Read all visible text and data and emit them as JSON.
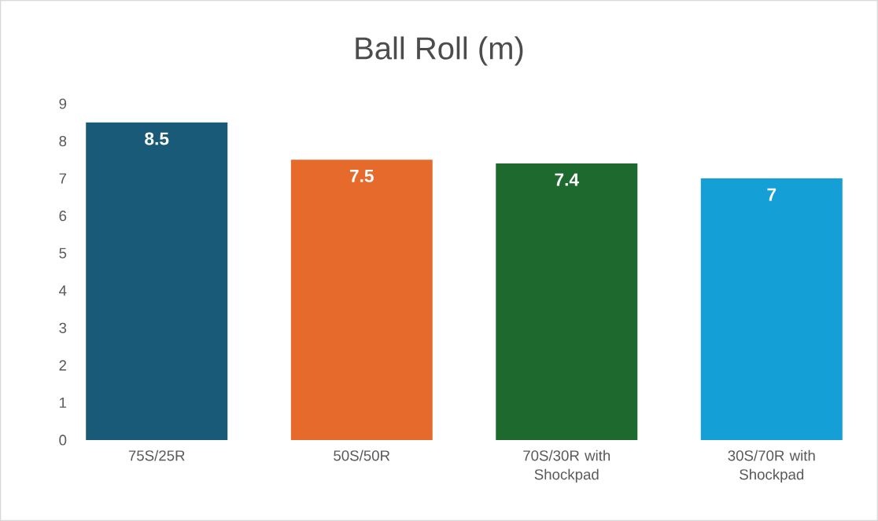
{
  "chart_data": {
    "type": "bar",
    "title": "Ball Roll (m)",
    "categories": [
      "75S/25R",
      "50S/50R",
      "70S/30R with Shockpad",
      "30S/70R with Shockpad"
    ],
    "values": [
      8.5,
      7.5,
      7.4,
      7
    ],
    "colors": [
      "#195a78",
      "#e66a2c",
      "#1e6a2e",
      "#149fd6"
    ],
    "ylim": [
      0,
      9
    ],
    "yticks": [
      0,
      1,
      2,
      3,
      4,
      5,
      6,
      7,
      8,
      9
    ],
    "grid": false,
    "data_labels": true
  }
}
